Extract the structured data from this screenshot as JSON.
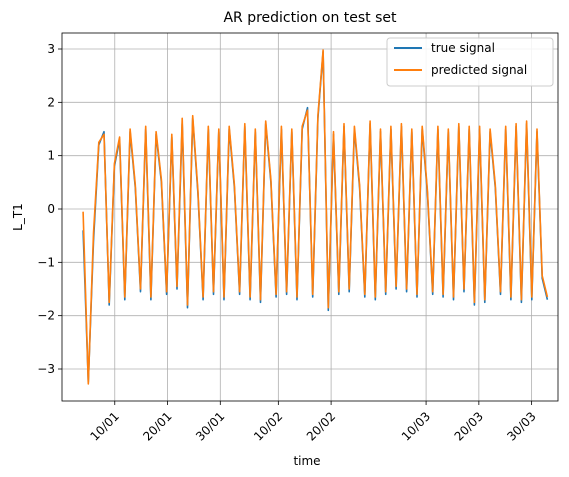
{
  "chart_data": {
    "type": "line",
    "title": "AR prediction on test set",
    "xlabel": "time",
    "ylabel": "L_T1",
    "x_range": [
      "2014-12-31",
      "2015-04-04"
    ],
    "ylim": [
      -3.6,
      3.3
    ],
    "grid": true,
    "legend_position": "top-right",
    "x_ticks": [
      {
        "label": "10/01",
        "date": "2015-01-10"
      },
      {
        "label": "20/01",
        "date": "2015-01-20"
      },
      {
        "label": "30/01",
        "date": "2015-01-30"
      },
      {
        "label": "10/02",
        "date": "2015-02-10"
      },
      {
        "label": "20/02",
        "date": "2015-02-20"
      },
      {
        "label": "10/03",
        "date": "2015-03-10"
      },
      {
        "label": "20/03",
        "date": "2015-03-20"
      },
      {
        "label": "30/03",
        "date": "2015-03-30"
      }
    ],
    "y_ticks": [
      3,
      2,
      1,
      0,
      -1,
      -2,
      -3
    ],
    "x_start": "2015-01-04",
    "x_end": "2015-04-02",
    "series": [
      {
        "name": "true signal",
        "color": "#1f77b4",
        "values": [
          -0.4,
          -3.25,
          -0.6,
          1.2,
          1.45,
          -1.8,
          0.8,
          1.3,
          -1.7,
          1.45,
          0.4,
          -1.55,
          1.5,
          -1.7,
          1.4,
          0.5,
          -1.6,
          1.35,
          -1.5,
          1.6,
          -1.85,
          1.7,
          0.3,
          -1.7,
          1.5,
          -1.6,
          1.45,
          -1.7,
          1.5,
          0.4,
          -1.6,
          1.55,
          -1.7,
          1.45,
          -1.75,
          1.6,
          0.5,
          -1.65,
          1.5,
          -1.6,
          1.45,
          -1.7,
          1.5,
          1.9,
          -1.65,
          1.7,
          2.95,
          -1.9,
          1.4,
          -1.6,
          1.55,
          -1.55,
          1.5,
          0.4,
          -1.65,
          1.6,
          -1.7,
          1.45,
          -1.6,
          1.5,
          -1.5,
          1.55,
          -1.55,
          1.45,
          -1.65,
          1.5,
          0.3,
          -1.6,
          1.5,
          -1.65,
          1.45,
          -1.7,
          1.55,
          -1.55,
          1.5,
          -1.8,
          1.5,
          -1.75,
          1.45,
          0.4,
          -1.6,
          1.5,
          -1.7,
          1.55,
          -1.75,
          1.6,
          -1.7,
          1.45,
          -1.3,
          -1.7
        ]
      },
      {
        "name": "predicted signal",
        "color": "#ff7f0e",
        "values": [
          -0.05,
          -3.28,
          -0.45,
          1.25,
          1.4,
          -1.75,
          0.85,
          1.35,
          -1.65,
          1.5,
          0.45,
          -1.5,
          1.55,
          -1.65,
          1.45,
          0.55,
          -1.55,
          1.4,
          -1.45,
          1.7,
          -1.8,
          1.75,
          0.35,
          -1.65,
          1.55,
          -1.55,
          1.5,
          -1.65,
          1.55,
          0.45,
          -1.55,
          1.6,
          -1.65,
          1.5,
          -1.7,
          1.65,
          0.55,
          -1.6,
          1.55,
          -1.55,
          1.5,
          -1.65,
          1.55,
          1.85,
          -1.6,
          1.75,
          2.98,
          -1.85,
          1.45,
          -1.55,
          1.6,
          -1.5,
          1.55,
          0.45,
          -1.6,
          1.65,
          -1.65,
          1.5,
          -1.55,
          1.55,
          -1.45,
          1.6,
          -1.5,
          1.5,
          -1.6,
          1.55,
          0.35,
          -1.55,
          1.55,
          -1.6,
          1.5,
          -1.65,
          1.6,
          -1.5,
          1.55,
          -1.75,
          1.55,
          -1.7,
          1.5,
          0.45,
          -1.55,
          1.55,
          -1.65,
          1.6,
          -1.7,
          1.65,
          -1.65,
          1.5,
          -1.25,
          -1.65
        ]
      }
    ]
  }
}
